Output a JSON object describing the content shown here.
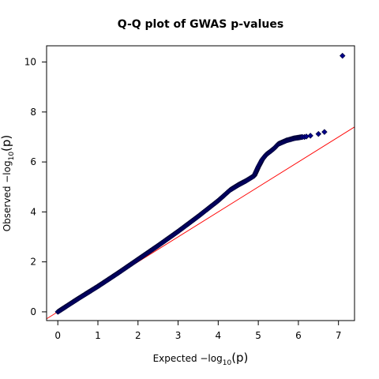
{
  "chart_data": {
    "type": "scatter",
    "title": "Q-Q plot of GWAS p-values",
    "xlabel": {
      "prefix": "Expected  −log",
      "sub": "10",
      "suffix": "(p)"
    },
    "ylabel": {
      "prefix": "Observed  −log",
      "sub": "10",
      "suffix": "(p)"
    },
    "xlim": [
      -0.28,
      7.4
    ],
    "ylim": [
      -0.35,
      10.65
    ],
    "x_ticks": [
      0,
      1,
      2,
      3,
      4,
      5,
      6,
      7
    ],
    "y_ticks": [
      0,
      2,
      4,
      6,
      8,
      10
    ],
    "grid": false,
    "reference_line": {
      "slope": 1,
      "intercept": 0,
      "color": "#ff0000"
    },
    "point_color": "#00008b",
    "point_outline": "#000033",
    "curve_points": [
      [
        0.0,
        0.0
      ],
      [
        0.5,
        0.52
      ],
      [
        1.0,
        1.02
      ],
      [
        1.5,
        1.55
      ],
      [
        2.0,
        2.1
      ],
      [
        2.5,
        2.65
      ],
      [
        3.0,
        3.22
      ],
      [
        3.5,
        3.82
      ],
      [
        4.0,
        4.45
      ],
      [
        4.3,
        4.88
      ],
      [
        4.5,
        5.08
      ],
      [
        4.7,
        5.25
      ],
      [
        4.9,
        5.45
      ],
      [
        5.0,
        5.8
      ],
      [
        5.1,
        6.1
      ],
      [
        5.2,
        6.3
      ],
      [
        5.3,
        6.42
      ],
      [
        5.4,
        6.55
      ],
      [
        5.5,
        6.72
      ],
      [
        5.7,
        6.86
      ],
      [
        5.9,
        6.95
      ],
      [
        6.1,
        7.0
      ]
    ],
    "sparse_points": [
      [
        6.15,
        7.0
      ],
      [
        6.2,
        7.02
      ],
      [
        6.3,
        7.05
      ],
      [
        6.5,
        7.12
      ],
      [
        6.65,
        7.2
      ],
      [
        7.1,
        10.25
      ]
    ]
  }
}
